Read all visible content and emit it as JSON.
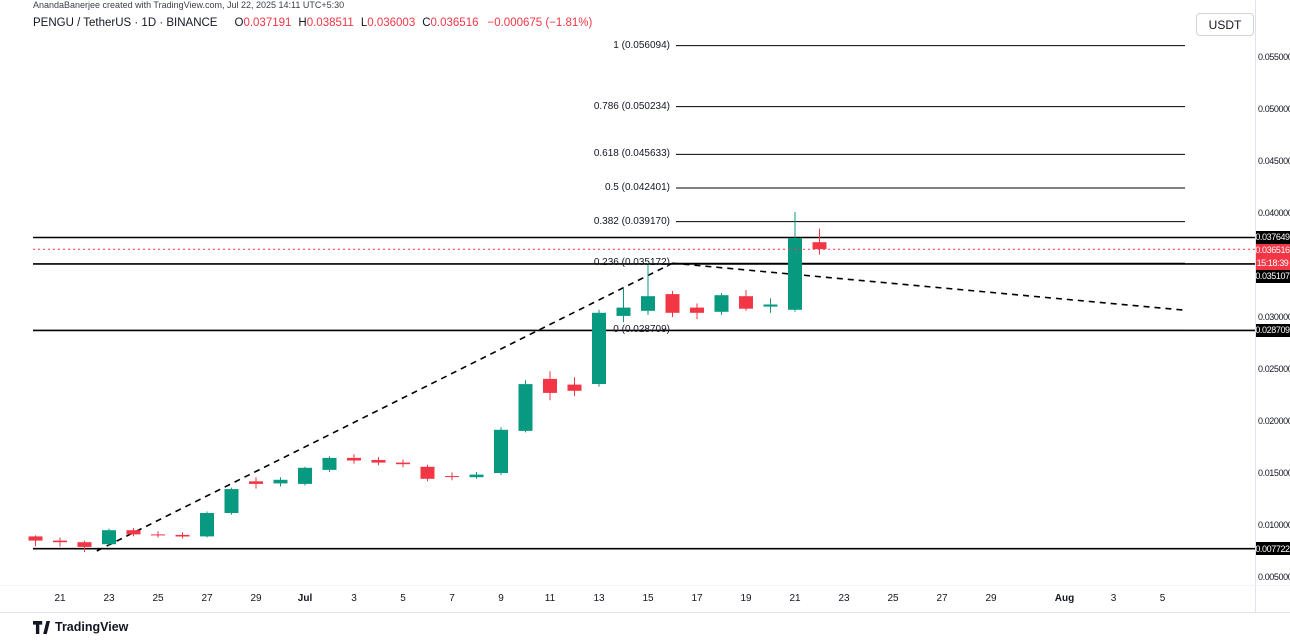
{
  "watermark": "AnandaBanerjee created with TradingView.com, Jul 22, 2025 14:11 UTC+5:30",
  "legend": {
    "symbol": "PENGU / TetherUS · 1D · BINANCE",
    "o_label": "O",
    "o": "0.037191",
    "h_label": "H",
    "h": "0.038511",
    "l_label": "L",
    "l": "0.036003",
    "c_label": "C",
    "c": "0.036516",
    "change": "−0.000675 (−1.81%)"
  },
  "currency_button": "USDT",
  "logo_text": "TradingView",
  "colors": {
    "up": "#089981",
    "down": "#f23645",
    "line": "#000000",
    "axis_text": "#131722",
    "badge_dark_bg": "#000000",
    "badge_red_bg": "#f23645",
    "border": "#e0e3eb"
  },
  "chart_data": {
    "type": "candlestick",
    "symbol": "PENGU/USDT",
    "exchange": "BINANCE",
    "timeframe": "1D",
    "y_axis_range": [
      0.0035,
      0.0585
    ],
    "grid": false,
    "y_ticks": [
      {
        "label": "0.055000",
        "price": 0.055
      },
      {
        "label": "0.050000",
        "price": 0.05
      },
      {
        "label": "0.045000",
        "price": 0.045
      },
      {
        "label": "0.040000",
        "price": 0.04
      },
      {
        "label": "0.030000",
        "price": 0.03
      },
      {
        "label": "0.025000",
        "price": 0.025
      },
      {
        "label": "0.020000",
        "price": 0.02
      },
      {
        "label": "0.015000",
        "price": 0.015
      },
      {
        "label": "0.010000",
        "price": 0.01
      },
      {
        "label": "0.005000",
        "price": 0.005
      }
    ],
    "x_ticks": [
      {
        "label": "21",
        "index": 1
      },
      {
        "label": "23",
        "index": 3
      },
      {
        "label": "25",
        "index": 5
      },
      {
        "label": "27",
        "index": 7
      },
      {
        "label": "29",
        "index": 9
      },
      {
        "label": "Jul",
        "index": 11,
        "bold": true
      },
      {
        "label": "3",
        "index": 13
      },
      {
        "label": "5",
        "index": 15
      },
      {
        "label": "7",
        "index": 17
      },
      {
        "label": "9",
        "index": 19
      },
      {
        "label": "11",
        "index": 21
      },
      {
        "label": "13",
        "index": 23
      },
      {
        "label": "15",
        "index": 25
      },
      {
        "label": "17",
        "index": 27
      },
      {
        "label": "19",
        "index": 29
      },
      {
        "label": "21",
        "index": 31
      },
      {
        "label": "23",
        "index": 33
      },
      {
        "label": "25",
        "index": 35
      },
      {
        "label": "27",
        "index": 37
      },
      {
        "label": "29",
        "index": 39
      },
      {
        "label": "Aug",
        "index": 42,
        "bold": true
      },
      {
        "label": "3",
        "index": 44
      },
      {
        "label": "5",
        "index": 46
      }
    ],
    "candles": [
      {
        "d": "Jun 20",
        "o": 0.0089,
        "h": 0.009,
        "l": 0.00795,
        "c": 0.0085
      },
      {
        "d": "Jun 21",
        "o": 0.0085,
        "h": 0.0088,
        "l": 0.0079,
        "c": 0.00835
      },
      {
        "d": "Jun 22",
        "o": 0.00835,
        "h": 0.0085,
        "l": 0.0074,
        "c": 0.0079
      },
      {
        "d": "Jun 23",
        "o": 0.00815,
        "h": 0.00965,
        "l": 0.008,
        "c": 0.0095
      },
      {
        "d": "Jun 24",
        "o": 0.0095,
        "h": 0.0097,
        "l": 0.0089,
        "c": 0.0091
      },
      {
        "d": "Jun 25",
        "o": 0.0091,
        "h": 0.0094,
        "l": 0.0088,
        "c": 0.009
      },
      {
        "d": "Jun 26",
        "o": 0.00905,
        "h": 0.0093,
        "l": 0.0087,
        "c": 0.0089
      },
      {
        "d": "Jun 27",
        "o": 0.0089,
        "h": 0.0113,
        "l": 0.0088,
        "c": 0.01115
      },
      {
        "d": "Jun 28",
        "o": 0.01115,
        "h": 0.0136,
        "l": 0.011,
        "c": 0.01345
      },
      {
        "d": "Jun 29",
        "o": 0.0142,
        "h": 0.0146,
        "l": 0.0135,
        "c": 0.01395
      },
      {
        "d": "Jun 30",
        "o": 0.014,
        "h": 0.0146,
        "l": 0.0137,
        "c": 0.01435
      },
      {
        "d": "Jul 1",
        "o": 0.01395,
        "h": 0.0156,
        "l": 0.0138,
        "c": 0.0155
      },
      {
        "d": "Jul 2",
        "o": 0.0153,
        "h": 0.0166,
        "l": 0.0151,
        "c": 0.01645
      },
      {
        "d": "Jul 3",
        "o": 0.01645,
        "h": 0.0168,
        "l": 0.0159,
        "c": 0.0162
      },
      {
        "d": "Jul 4",
        "o": 0.01625,
        "h": 0.01655,
        "l": 0.01575,
        "c": 0.016
      },
      {
        "d": "Jul 5",
        "o": 0.016,
        "h": 0.0163,
        "l": 0.01555,
        "c": 0.01585
      },
      {
        "d": "Jul 6",
        "o": 0.0156,
        "h": 0.0158,
        "l": 0.0142,
        "c": 0.01445
      },
      {
        "d": "Jul 7",
        "o": 0.0147,
        "h": 0.01505,
        "l": 0.0143,
        "c": 0.0146
      },
      {
        "d": "Jul 8",
        "o": 0.0146,
        "h": 0.0151,
        "l": 0.01445,
        "c": 0.01485
      },
      {
        "d": "Jul 9",
        "o": 0.015,
        "h": 0.0194,
        "l": 0.0148,
        "c": 0.01915
      },
      {
        "d": "Jul 10",
        "o": 0.01905,
        "h": 0.0239,
        "l": 0.0189,
        "c": 0.02355
      },
      {
        "d": "Jul 11",
        "o": 0.02405,
        "h": 0.0248,
        "l": 0.022,
        "c": 0.0227
      },
      {
        "d": "Jul 12",
        "o": 0.0235,
        "h": 0.0242,
        "l": 0.0224,
        "c": 0.0229
      },
      {
        "d": "Jul 13",
        "o": 0.02355,
        "h": 0.0307,
        "l": 0.0233,
        "c": 0.0304
      },
      {
        "d": "Jul 14",
        "o": 0.0301,
        "h": 0.0327,
        "l": 0.0295,
        "c": 0.0309
      },
      {
        "d": "Jul 15",
        "o": 0.0306,
        "h": 0.0352,
        "l": 0.0302,
        "c": 0.032
      },
      {
        "d": "Jul 16",
        "o": 0.0322,
        "h": 0.0325,
        "l": 0.03,
        "c": 0.0304
      },
      {
        "d": "Jul 17",
        "o": 0.0309,
        "h": 0.0313,
        "l": 0.0298,
        "c": 0.0304
      },
      {
        "d": "Jul 18",
        "o": 0.0305,
        "h": 0.0323,
        "l": 0.0302,
        "c": 0.0321
      },
      {
        "d": "Jul 19",
        "o": 0.032,
        "h": 0.0326,
        "l": 0.0306,
        "c": 0.0308
      },
      {
        "d": "Jul 20",
        "o": 0.031,
        "h": 0.0318,
        "l": 0.0304,
        "c": 0.0312
      },
      {
        "d": "Jul 21",
        "o": 0.0307,
        "h": 0.0401,
        "l": 0.0305,
        "c": 0.0376
      },
      {
        "d": "Jul 22",
        "o": 0.037191,
        "h": 0.038511,
        "l": 0.036003,
        "c": 0.036516
      }
    ],
    "fib_retracement": [
      {
        "ratio": "1",
        "price": 0.056094,
        "label": "1 (0.056094)"
      },
      {
        "ratio": "0.786",
        "price": 0.050234,
        "label": "0.786 (0.050234)"
      },
      {
        "ratio": "0.618",
        "price": 0.045633,
        "label": "0.618 (0.045633)"
      },
      {
        "ratio": "0.5",
        "price": 0.042401,
        "label": "0.5 (0.042401)"
      },
      {
        "ratio": "0.382",
        "price": 0.03917,
        "label": "0.382 (0.039170)"
      },
      {
        "ratio": "0.236",
        "price": 0.035172,
        "label": "0.236 (0.035172)"
      },
      {
        "ratio": "0",
        "price": 0.028709,
        "label": "0 (0.028709)"
      }
    ],
    "horizontal_lines": [
      0.037649,
      0.035107,
      0.028709,
      0.007722
    ],
    "last_price": 0.036516,
    "countdown": "15:18:39",
    "axis_badges": [
      {
        "text": "0.037649",
        "price": 0.037649,
        "bg": "dark"
      },
      {
        "text": "0.036516",
        "price": 0.036516,
        "bg": "red"
      },
      {
        "text": "15:18:39",
        "bg": "red"
      },
      {
        "text": "0.035107",
        "price": 0.035107,
        "bg": "dark"
      },
      {
        "text": "0.028709",
        "price": 0.028709,
        "bg": "dark"
      },
      {
        "text": "0.007722",
        "price": 0.007722,
        "bg": "dark"
      }
    ],
    "trendlines": [
      {
        "from_index": 2.5,
        "from_price": 0.0075,
        "to_index": 26,
        "to_price": 0.035172,
        "style": "dashed"
      },
      {
        "from_index": 26,
        "from_price": 0.035172,
        "to_index": 47,
        "to_price": 0.03063,
        "style": "dashed"
      }
    ]
  }
}
